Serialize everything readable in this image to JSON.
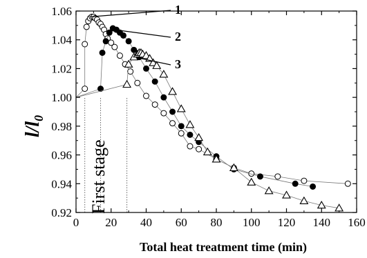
{
  "chart_data": {
    "type": "scatter",
    "xlabel": "Total heat treatment time (min)",
    "ylabel_main": "l/l",
    "ylabel_sub": "0",
    "xlim": [
      0,
      160
    ],
    "ylim": [
      0.92,
      1.06
    ],
    "x_ticks": [
      0,
      20,
      40,
      60,
      80,
      100,
      120,
      140,
      160
    ],
    "x_tick_labels": [
      "0",
      "20",
      "40",
      "60",
      "80",
      "100",
      "120",
      "140",
      "160"
    ],
    "y_ticks": [
      0.92,
      0.94,
      0.96,
      0.98,
      1.0,
      1.02,
      1.04,
      1.06
    ],
    "y_tick_labels": [
      "0.92",
      "0.94",
      "0.96",
      "0.98",
      "1.00",
      "1.02",
      "1.04",
      "1.06"
    ],
    "grid": false,
    "stage_annotation": "First stage",
    "stage_lines_x": [
      5,
      14,
      29
    ],
    "series": [
      {
        "label": "1",
        "marker": "open-circle",
        "fill": "#ffffff",
        "label_anchor": [
          8,
          1.056
        ],
        "x": [
          0,
          5,
          5,
          6,
          7,
          8,
          9,
          10,
          11,
          12,
          13,
          14,
          15,
          16,
          17,
          18,
          20,
          22,
          25,
          28,
          31,
          35,
          40,
          45,
          50,
          55,
          60,
          65,
          70,
          80,
          90,
          100,
          115,
          130,
          155
        ],
        "y": [
          1.0,
          1.006,
          1.037,
          1.049,
          1.053,
          1.055,
          1.056,
          1.056,
          1.055,
          1.054,
          1.052,
          1.051,
          1.049,
          1.047,
          1.044,
          1.041,
          1.038,
          1.035,
          1.029,
          1.023,
          1.018,
          1.01,
          1.001,
          0.995,
          0.989,
          0.982,
          0.975,
          0.966,
          0.964,
          0.957,
          0.951,
          0.947,
          0.945,
          0.942,
          0.94
        ]
      },
      {
        "label": "2",
        "marker": "filled-circle",
        "fill": "#000000",
        "label_anchor": [
          22,
          1.047
        ],
        "x": [
          0,
          14,
          15,
          17,
          19,
          21,
          23,
          25,
          27,
          30,
          33,
          36,
          40,
          45,
          50,
          55,
          60,
          65,
          70,
          80,
          90,
          105,
          125,
          135
        ],
        "y": [
          1.0,
          1.006,
          1.031,
          1.039,
          1.045,
          1.048,
          1.047,
          1.045,
          1.043,
          1.039,
          1.033,
          1.028,
          1.02,
          1.011,
          1.0,
          0.99,
          0.98,
          0.974,
          0.969,
          0.959,
          0.95,
          0.945,
          0.94,
          0.938
        ]
      },
      {
        "label": "3",
        "marker": "open-triangle",
        "fill": "#ffffff",
        "label_anchor": [
          37,
          1.027
        ],
        "x": [
          0,
          29,
          30,
          33,
          35,
          36,
          37,
          38,
          40,
          42,
          44,
          46,
          50,
          55,
          60,
          65,
          70,
          75,
          80,
          90,
          100,
          110,
          120,
          130,
          140,
          150
        ],
        "y": [
          1.0,
          1.009,
          1.023,
          1.028,
          1.03,
          1.031,
          1.031,
          1.03,
          1.029,
          1.027,
          1.024,
          1.022,
          1.016,
          1.004,
          0.992,
          0.981,
          0.972,
          0.962,
          0.957,
          0.951,
          0.941,
          0.935,
          0.932,
          0.928,
          0.925,
          0.923
        ]
      }
    ]
  }
}
